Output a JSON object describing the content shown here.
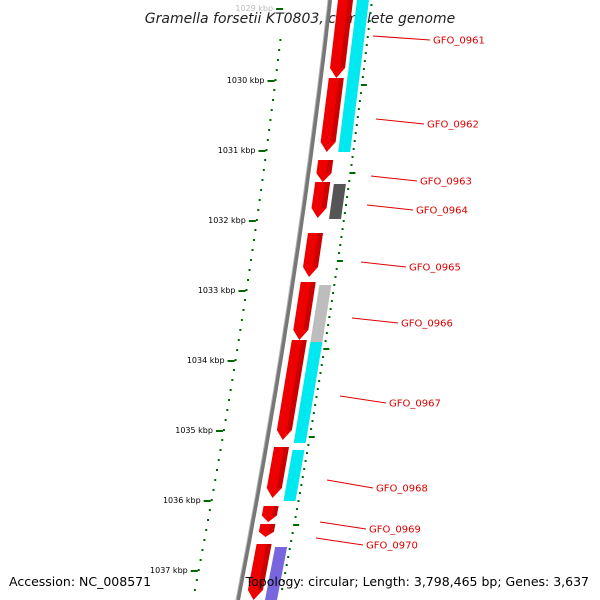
{
  "title": "Gramella forsetii KT0803, complete genome",
  "footer": {
    "accession": "Accession: NC_008571",
    "summary": "Topology: circular; Length: 3,798,465 bp; Genes: 3,637"
  },
  "colors": {
    "gene_red": "#ee0000",
    "gene_red_dark": "#a00000",
    "cyan": "#00e8f0",
    "gray_dark": "#555555",
    "gray_light": "#bdbdbd",
    "purple": "#7766dd",
    "backbone": "#777777",
    "tick_green": "#006600",
    "label_red": "#dd0000"
  },
  "scale_labels": [
    "1029 kbp",
    "1030 kbp",
    "1031 kbp",
    "1032 kbp",
    "1033 kbp",
    "1034 kbp",
    "1035 kbp",
    "1036 kbp",
    "1037 kbp"
  ],
  "gene_labels": [
    "GFO_0961",
    "GFO_0962",
    "GFO_0963",
    "GFO_0964",
    "GFO_0965",
    "GFO_0966",
    "GFO_0967",
    "GFO_0968",
    "GFO_0969",
    "GFO_0970"
  ]
}
